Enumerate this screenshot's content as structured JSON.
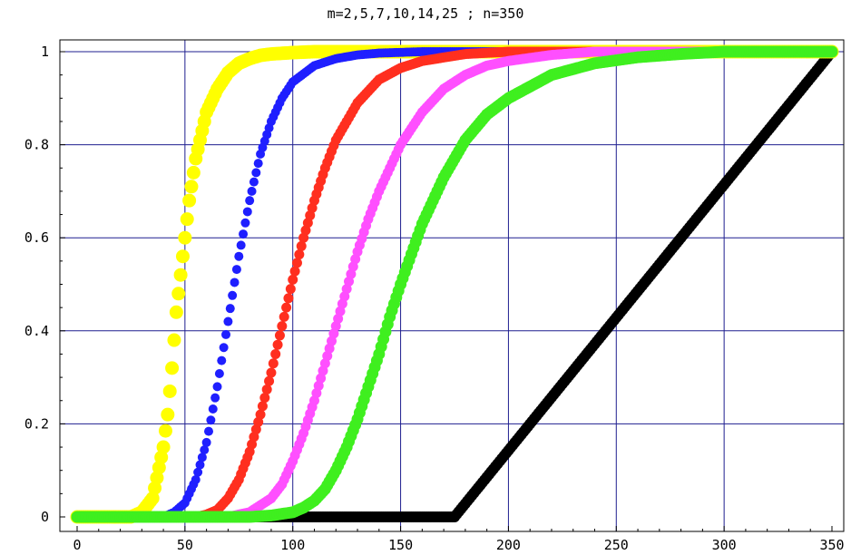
{
  "chart_data": {
    "type": "scatter",
    "title": "m=2,5,7,10,14,25 ; n=350",
    "xlabel": "",
    "ylabel": "",
    "xlim": [
      0,
      350
    ],
    "ylim": [
      0,
      1
    ],
    "xticks": [
      "0",
      "50",
      "100",
      "150",
      "200",
      "250",
      "300",
      "350"
    ],
    "yticks": [
      "0",
      "0.2",
      "0.4",
      "0.6",
      "0.8",
      "1"
    ],
    "grid": true,
    "grid_color": "#1f1f8f",
    "series": [
      {
        "color": "#ffff00",
        "x": [
          0,
          25,
          30,
          35,
          40,
          42,
          44,
          46,
          48,
          50,
          52,
          55,
          58,
          60,
          65,
          70,
          75,
          80,
          85,
          90,
          100,
          110,
          120,
          350
        ],
        "y": [
          0,
          0,
          0.01,
          0.04,
          0.15,
          0.22,
          0.32,
          0.44,
          0.52,
          0.6,
          0.68,
          0.77,
          0.83,
          0.87,
          0.92,
          0.955,
          0.975,
          0.985,
          0.992,
          0.995,
          0.998,
          1,
          1,
          1
        ]
      },
      {
        "color": "#1f1fff",
        "x": [
          0,
          40,
          45,
          50,
          55,
          60,
          65,
          70,
          75,
          80,
          85,
          90,
          95,
          100,
          110,
          120,
          130,
          140,
          160,
          350
        ],
        "y": [
          0,
          0,
          0.01,
          0.03,
          0.08,
          0.16,
          0.28,
          0.42,
          0.56,
          0.68,
          0.78,
          0.85,
          0.9,
          0.935,
          0.97,
          0.985,
          0.993,
          0.997,
          1,
          1
        ]
      },
      {
        "color": "#ff2f1f",
        "x": [
          0,
          55,
          60,
          65,
          70,
          75,
          80,
          85,
          90,
          95,
          100,
          105,
          110,
          115,
          120,
          130,
          140,
          150,
          160,
          180,
          200,
          350
        ],
        "y": [
          0,
          0,
          0.005,
          0.015,
          0.04,
          0.08,
          0.14,
          0.22,
          0.31,
          0.41,
          0.51,
          0.6,
          0.68,
          0.75,
          0.81,
          0.89,
          0.94,
          0.965,
          0.98,
          0.995,
          1,
          1
        ]
      },
      {
        "color": "#ff4fff",
        "x": [
          0,
          70,
          80,
          90,
          95,
          100,
          105,
          110,
          115,
          120,
          125,
          130,
          135,
          140,
          150,
          160,
          170,
          180,
          190,
          200,
          220,
          240,
          350
        ],
        "y": [
          0,
          0,
          0.01,
          0.04,
          0.07,
          0.12,
          0.18,
          0.25,
          0.33,
          0.41,
          0.49,
          0.57,
          0.64,
          0.7,
          0.8,
          0.87,
          0.92,
          0.95,
          0.97,
          0.98,
          0.993,
          1,
          1
        ]
      },
      {
        "color": "#3fef1f",
        "x": [
          0,
          80,
          90,
          100,
          105,
          110,
          115,
          120,
          125,
          130,
          135,
          140,
          145,
          150,
          160,
          170,
          180,
          190,
          200,
          220,
          240,
          260,
          280,
          300,
          350
        ],
        "y": [
          0,
          0,
          0.003,
          0.01,
          0.02,
          0.035,
          0.06,
          0.1,
          0.15,
          0.21,
          0.28,
          0.35,
          0.43,
          0.5,
          0.63,
          0.73,
          0.81,
          0.865,
          0.9,
          0.95,
          0.975,
          0.988,
          0.995,
          1,
          1
        ]
      },
      {
        "color": "#000000",
        "x": [
          0,
          175,
          350
        ],
        "y": [
          0,
          0,
          1
        ]
      }
    ]
  }
}
